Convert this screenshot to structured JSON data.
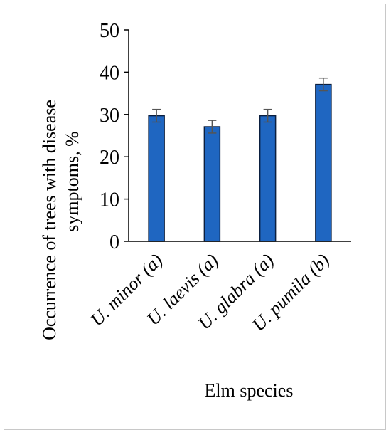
{
  "chart_data": {
    "type": "bar",
    "categories": [
      {
        "name": "U. minor",
        "letter": "(a)"
      },
      {
        "name": "U. laevis",
        "letter": "(a)"
      },
      {
        "name": "U. glabra",
        "letter": "(a)"
      },
      {
        "name": "U. pumila",
        "letter": "(b)"
      }
    ],
    "values": [
      29.7,
      27.1,
      29.7,
      37.1
    ],
    "errors": [
      1.5,
      1.5,
      1.5,
      1.5
    ],
    "ylim": [
      0,
      50
    ],
    "yticks": [
      0,
      10,
      20,
      30,
      40,
      50
    ],
    "xlabel": "Elm species",
    "ylabel_lines": [
      "Occurrence of trees  with disease",
      "symptoms, %"
    ],
    "bar_color": "#1f66c1",
    "bar_edge_color": "#0b1f3f",
    "error_color": "#555555",
    "grid": false
  }
}
